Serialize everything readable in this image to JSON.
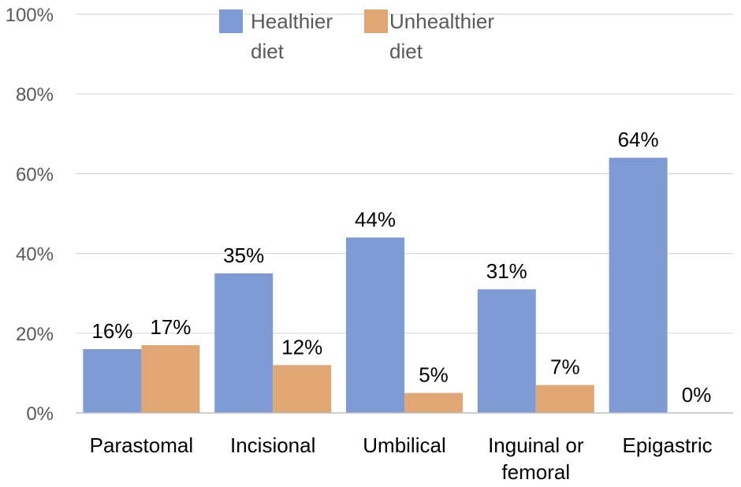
{
  "chart_data": {
    "type": "bar",
    "title": "",
    "xlabel": "",
    "ylabel": "",
    "ylim": [
      0,
      100
    ],
    "yticks": [
      "0%",
      "20%",
      "40%",
      "60%",
      "80%",
      "100%"
    ],
    "categories": [
      [
        "Parastomal"
      ],
      [
        "Incisional"
      ],
      [
        "Umbilical"
      ],
      [
        "Inguinal or",
        "femoral"
      ],
      [
        "Epigastric"
      ]
    ],
    "series": [
      {
        "name": [
          "Healthier",
          "diet"
        ],
        "color": "#7f9bd6",
        "values": [
          16,
          35,
          44,
          31,
          64
        ],
        "labels": [
          "16%",
          "35%",
          "44%",
          "31%",
          "64%"
        ]
      },
      {
        "name": [
          "Unhealthier",
          "diet"
        ],
        "color": "#e0a674",
        "values": [
          17,
          12,
          5,
          7,
          0
        ],
        "labels": [
          "17%",
          "12%",
          "5%",
          "7%",
          "0%"
        ]
      }
    ],
    "legend_position": "top-center",
    "grid": true
  }
}
